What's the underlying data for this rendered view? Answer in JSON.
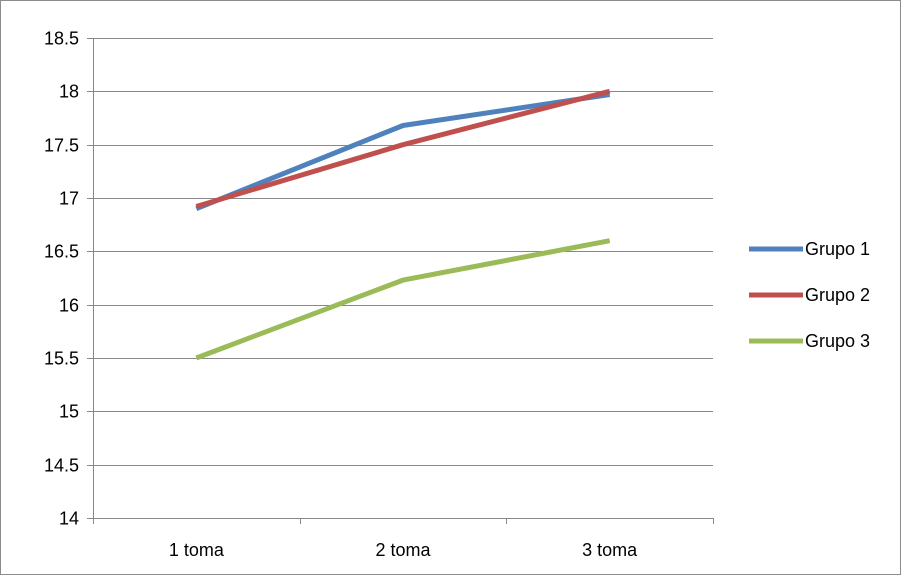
{
  "chart_data": {
    "type": "line",
    "title": "",
    "xlabel": "",
    "ylabel": "",
    "categories": [
      "1 toma",
      "2 toma",
      "3 toma"
    ],
    "ylim": [
      14,
      18.5
    ],
    "ytick_step": 0.5,
    "yticks": [
      "14",
      "14.5",
      "15",
      "15.5",
      "16",
      "16.5",
      "17",
      "17.5",
      "18",
      "18.5"
    ],
    "grid": true,
    "legend_position": "right",
    "series": [
      {
        "name": "Grupo 1",
        "color": "#4f81bd",
        "values": [
          16.9,
          17.68,
          17.97
        ]
      },
      {
        "name": "Grupo 2",
        "color": "#c0504d",
        "values": [
          16.92,
          17.5,
          18.0
        ]
      },
      {
        "name": "Grupo 3",
        "color": "#9bbb59",
        "values": [
          15.5,
          16.23,
          16.6
        ]
      }
    ]
  }
}
